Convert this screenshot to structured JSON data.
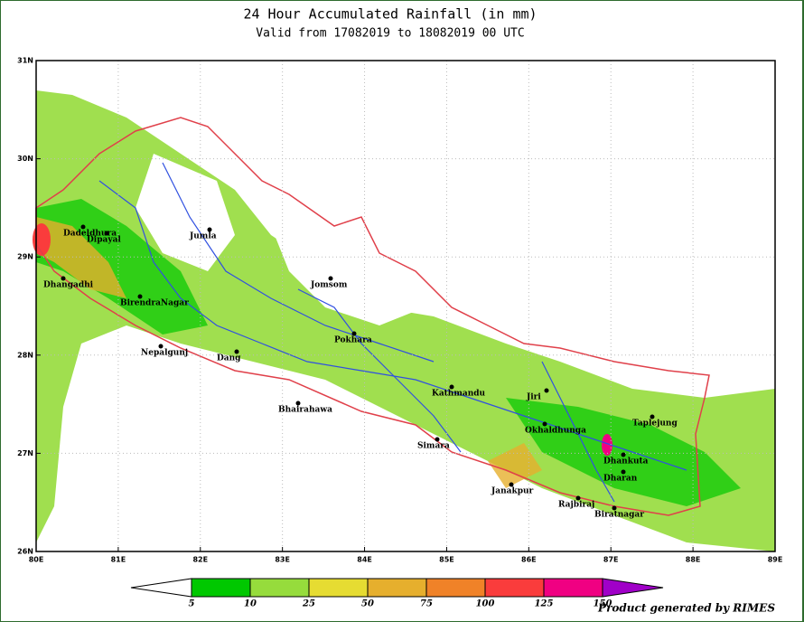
{
  "header": {
    "title": "24 Hour Accumulated  Rainfall (in mm)",
    "subtitle": "Valid from 17082019 to 18082019 00 UTC"
  },
  "map": {
    "xlim": [
      80,
      89
    ],
    "ylim": [
      26,
      31
    ],
    "xticks": [
      {
        "value": 80,
        "label": "80E"
      },
      {
        "value": 81,
        "label": "81E"
      },
      {
        "value": 82,
        "label": "82E"
      },
      {
        "value": 83,
        "label": "83E"
      },
      {
        "value": 84,
        "label": "84E"
      },
      {
        "value": 85,
        "label": "85E"
      },
      {
        "value": 86,
        "label": "86E"
      },
      {
        "value": 87,
        "label": "87E"
      },
      {
        "value": 88,
        "label": "88E"
      },
      {
        "value": 89,
        "label": "89E"
      }
    ],
    "yticks": [
      {
        "value": 26,
        "label": "26N"
      },
      {
        "value": 27,
        "label": "27N"
      },
      {
        "value": 28,
        "label": "28N"
      },
      {
        "value": 29,
        "label": "29N"
      },
      {
        "value": 30,
        "label": "30N"
      },
      {
        "value": 31,
        "label": "31N"
      }
    ],
    "cities": [
      "Dadeldhura",
      "Dipayal",
      "Jumla",
      "Dhangadhi",
      "BirendraNagar",
      "Nepalgunj",
      "Dang",
      "Jomsom",
      "Pokhara",
      "Bhairahawa",
      "Kathmandu",
      "Jiri",
      "Okhaldhunga",
      "Simara",
      "Janakpur",
      "Taplejung",
      "Dhankuta",
      "Dharan",
      "Rajbiraj",
      "Biratnagar"
    ]
  },
  "colorbar": {
    "levels": [
      5,
      10,
      25,
      50,
      75,
      100,
      125,
      150
    ],
    "colors": [
      "#ffffff",
      "#00c800",
      "#96dc3c",
      "#e6dc32",
      "#e6af2d",
      "#f08228",
      "#fa3c3c",
      "#f00082",
      "#a000c8"
    ]
  },
  "footer": "Product generated by RIMES"
}
